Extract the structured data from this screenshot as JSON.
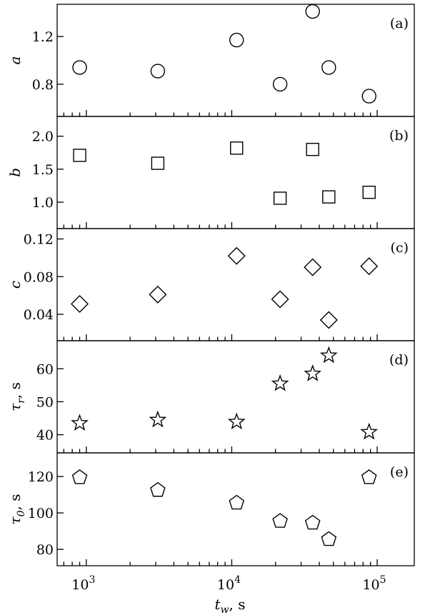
{
  "chart_data": {
    "type": "scatter",
    "xscale": "log",
    "xlim": [
      630,
      180000
    ],
    "xticks": [
      {
        "value": 1000,
        "base": "10",
        "exp": "3"
      },
      {
        "value": 10000,
        "base": "10",
        "exp": "4"
      },
      {
        "value": 100000,
        "base": "10",
        "exp": "5"
      }
    ],
    "xlabel": {
      "main": "t",
      "sub": "w",
      "suffix": ", s"
    },
    "x": [
      900,
      3100,
      10800,
      21500,
      36000,
      46500,
      88000
    ],
    "panels": [
      {
        "label": "(a)",
        "ylabel": {
          "main": "a",
          "sub": ""
        },
        "marker": "circle",
        "ylim": [
          0.53,
          1.47
        ],
        "yticks": [
          "0.8",
          "1.2"
        ],
        "points": [
          {
            "x": 900,
            "y": 0.94
          },
          {
            "x": 3100,
            "y": 0.91
          },
          {
            "x": 10800,
            "y": 1.17
          },
          {
            "x": 21500,
            "y": 0.8
          },
          {
            "x": 36000,
            "y": 1.41
          },
          {
            "x": 46500,
            "y": 0.94
          },
          {
            "x": 88000,
            "y": 0.7
          }
        ]
      },
      {
        "label": "(b)",
        "ylabel": {
          "main": "b",
          "sub": ""
        },
        "marker": "square",
        "ylim": [
          0.6,
          2.3
        ],
        "yticks": [
          "1.0",
          "1.5",
          "2.0"
        ],
        "points": [
          {
            "x": 900,
            "y": 1.71
          },
          {
            "x": 3100,
            "y": 1.59
          },
          {
            "x": 10800,
            "y": 1.82
          },
          {
            "x": 21500,
            "y": 1.06
          },
          {
            "x": 36000,
            "y": 1.8
          },
          {
            "x": 46500,
            "y": 1.08
          },
          {
            "x": 88000,
            "y": 1.15
          }
        ]
      },
      {
        "label": "(c)",
        "ylabel": {
          "main": "c",
          "sub": ""
        },
        "marker": "diamond",
        "ylim": [
          0.012,
          0.131
        ],
        "yticks": [
          "0.04",
          "0.08",
          "0.12"
        ],
        "points": [
          {
            "x": 900,
            "y": 0.051
          },
          {
            "x": 3100,
            "y": 0.061
          },
          {
            "x": 10800,
            "y": 0.102
          },
          {
            "x": 21500,
            "y": 0.056
          },
          {
            "x": 36000,
            "y": 0.09
          },
          {
            "x": 46500,
            "y": 0.034
          },
          {
            "x": 88000,
            "y": 0.091
          }
        ]
      },
      {
        "label": "(d)",
        "ylabel": {
          "main": "τ",
          "sub": "r",
          "suffix": ", s"
        },
        "marker": "star",
        "ylim": [
          34.5,
          68.5
        ],
        "yticks": [
          "40",
          "50",
          "60"
        ],
        "points": [
          {
            "x": 900,
            "y": 43.5
          },
          {
            "x": 3100,
            "y": 44.5
          },
          {
            "x": 10800,
            "y": 43.9
          },
          {
            "x": 21500,
            "y": 55.5
          },
          {
            "x": 36000,
            "y": 58.5
          },
          {
            "x": 46500,
            "y": 64.0
          },
          {
            "x": 88000,
            "y": 40.8
          }
        ]
      },
      {
        "label": "(e)",
        "ylabel": {
          "main": "τ",
          "sub": "0",
          "suffix": ", s"
        },
        "marker": "pentagon",
        "ylim": [
          71,
          133
        ],
        "yticks": [
          "80",
          "100",
          "120"
        ],
        "points": [
          {
            "x": 900,
            "y": 119.5
          },
          {
            "x": 3100,
            "y": 112.5
          },
          {
            "x": 10800,
            "y": 105.5
          },
          {
            "x": 21500,
            "y": 95.5
          },
          {
            "x": 36000,
            "y": 94.5
          },
          {
            "x": 46500,
            "y": 85.5
          },
          {
            "x": 88000,
            "y": 119.5
          }
        ]
      }
    ]
  }
}
